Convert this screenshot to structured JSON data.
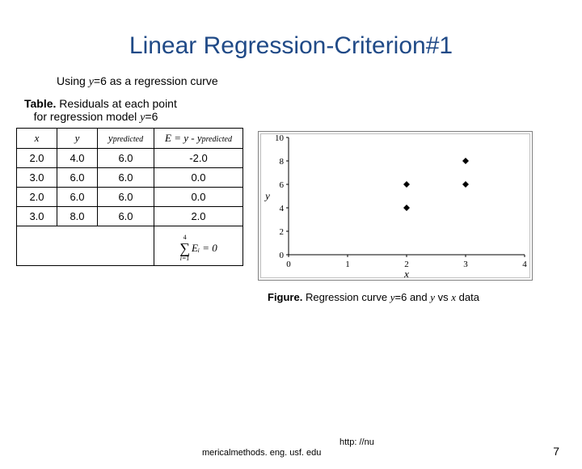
{
  "title": "Linear Regression-Criterion#1",
  "subtitle_prefix": "Using ",
  "subtitle_var": "y",
  "subtitle_eq": "=6 as a regression curve",
  "table_caption_bold": "Table.",
  "table_caption_rest1": " Residuals at each point",
  "table_caption_rest2": "for regression model ",
  "table_caption_var": "y",
  "table_caption_eq": "=6",
  "table": {
    "headers": {
      "x": "x",
      "y": "y",
      "ypred": "y",
      "ypred_sub": "predicted",
      "E": "E = y - y",
      "E_sub": "predicted"
    },
    "rows": [
      [
        "2.0",
        "4.0",
        "6.0",
        "-2.0"
      ],
      [
        "3.0",
        "6.0",
        "6.0",
        "0.0"
      ],
      [
        "2.0",
        "6.0",
        "6.0",
        "0.0"
      ],
      [
        "3.0",
        "8.0",
        "6.0",
        "2.0"
      ]
    ],
    "sum_label": "",
    "sum_expr_top": "4",
    "sum_expr_sigma": "∑",
    "sum_expr_bot": "i=1",
    "sum_expr_body": "Eᵢ = 0"
  },
  "chart": {
    "type": "scatter",
    "xlabel": "x",
    "ylabel": "y",
    "xlim": [
      0,
      4
    ],
    "ylim": [
      0,
      10
    ],
    "xticks": [
      0,
      1,
      2,
      3,
      4
    ],
    "yticks": [
      0,
      2,
      4,
      6,
      8,
      10
    ],
    "ytick_labels": [
      "0",
      "2",
      "4",
      "6",
      "8",
      "10"
    ],
    "points": [
      {
        "x": 2,
        "y": 4
      },
      {
        "x": 3,
        "y": 6
      },
      {
        "x": 2,
        "y": 6
      },
      {
        "x": 3,
        "y": 8
      }
    ],
    "marker_color": "#000000",
    "marker_size": 4,
    "border_color": "#808080",
    "background_color": "#ffffff",
    "tick_fontsize": 11,
    "label_fontsize": 13
  },
  "figure_caption_bold": "Figure.",
  "figure_caption_rest1": " Regression curve ",
  "figure_caption_var1": "y",
  "figure_caption_eq": "=6 and ",
  "figure_caption_var2": "y",
  "figure_caption_rest2": " vs ",
  "figure_caption_var3": "x",
  "figure_caption_rest3": " data",
  "footer": {
    "http": "http: //nu",
    "url": "mericalmethods. eng. usf. edu",
    "pagenum": "7"
  }
}
